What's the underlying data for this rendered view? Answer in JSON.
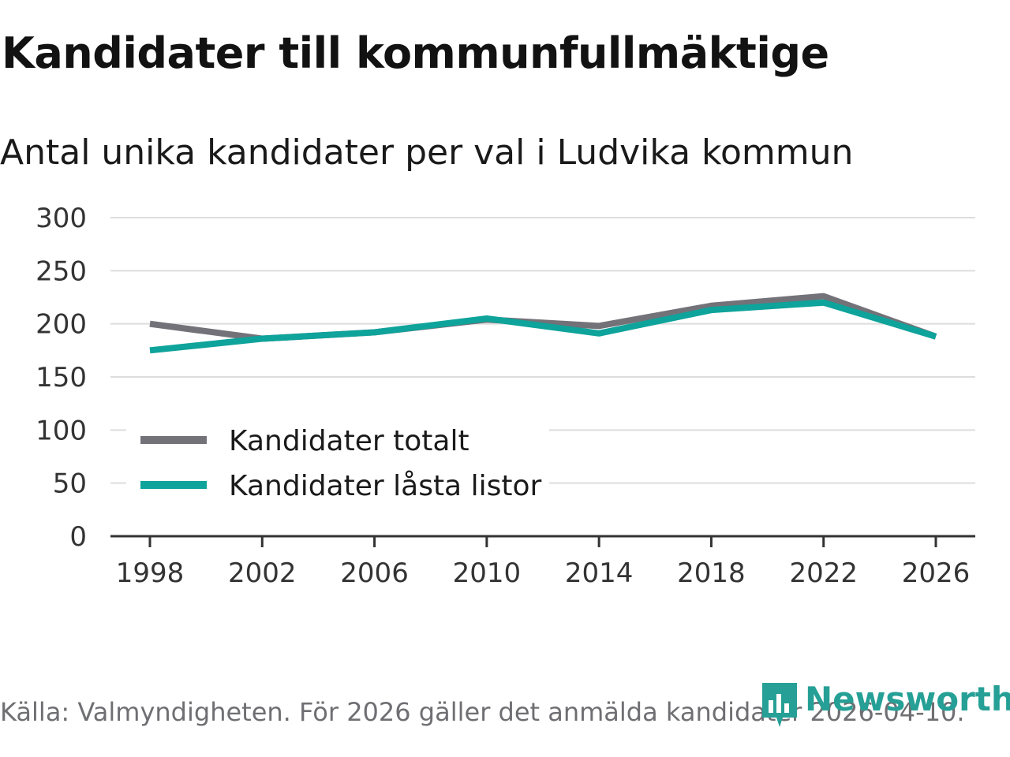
{
  "header": {
    "title": "Kandidater till kommunfullmäktige",
    "subtitle": "Antal unika kandidater per val i Ludvika kommun"
  },
  "footer": {
    "source": "Källa: Valmyndigheten. För 2026 gäller det anmälda kandidater 2026-04-10.",
    "brand": "Newsworthy"
  },
  "colors": {
    "total": "#737278",
    "locked": "#0ea39b",
    "grid": "#dddddd",
    "axis": "#333333",
    "brand": "#26a096"
  },
  "chart_data": {
    "type": "line",
    "title": "Kandidater till kommunfullmäktige",
    "subtitle": "Antal unika kandidater per val i Ludvika kommun",
    "xlabel": "",
    "ylabel": "",
    "x": [
      "1998",
      "2002",
      "2006",
      "2010",
      "2014",
      "2018",
      "2022",
      "2026"
    ],
    "yticks": [
      0,
      50,
      100,
      150,
      200,
      250,
      300
    ],
    "ylim": [
      0,
      300
    ],
    "grid": true,
    "legend_position": "bottom-left",
    "series": [
      {
        "name": "Kandidater totalt",
        "values": [
          200,
          186,
          192,
          204,
          198,
          217,
          226,
          188
        ]
      },
      {
        "name": "Kandidater låsta listor",
        "values": [
          175,
          186,
          192,
          205,
          191,
          213,
          220,
          188
        ]
      }
    ]
  }
}
